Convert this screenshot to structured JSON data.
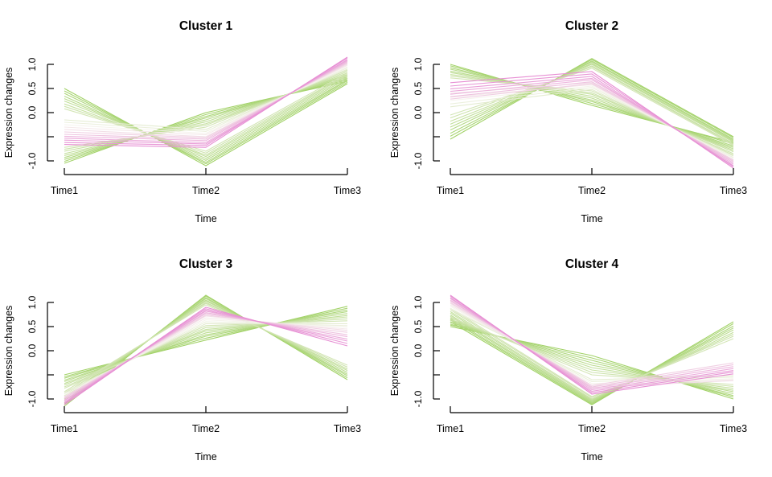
{
  "figure": {
    "background": "#ffffff",
    "description_labels": {
      "ylabel": "Expression changes",
      "xlabel": "Time"
    }
  },
  "colors": {
    "background": "#ffffff",
    "text": "#000000",
    "axis": "#000000",
    "membership_low_green": "#9fd163",
    "membership_mid_white": "#f5f3ec",
    "membership_high_pink": "#e78fd4"
  },
  "chart_data": [
    {
      "type": "line",
      "title": "Cluster 1",
      "xlabel": "Time",
      "ylabel": "Expression changes",
      "x_categories": [
        "Time1",
        "Time2",
        "Time3"
      ],
      "y_ticks": [
        -1.0,
        -0.5,
        0.0,
        0.5,
        1.0
      ],
      "y_tick_labels": [
        "-1.0",
        "",
        "0.0",
        "0.5",
        "1.0"
      ],
      "ylim": [
        -1.25,
        1.25
      ],
      "grid": false,
      "legend": "none",
      "line_format": "[time1, time2, time3, membership] — membership 0=green 1=pink",
      "lines": [
        [
          0.5,
          -1.1,
          0.6,
          0.02
        ],
        [
          0.45,
          -1.06,
          0.63,
          0.06
        ],
        [
          0.4,
          -1.03,
          0.66,
          0.09
        ],
        [
          0.34,
          -0.99,
          0.68,
          0.13
        ],
        [
          0.29,
          -0.95,
          0.71,
          0.16
        ],
        [
          0.24,
          -0.91,
          0.74,
          0.2
        ],
        [
          0.18,
          -0.88,
          0.77,
          0.23
        ],
        [
          0.13,
          -0.84,
          0.79,
          0.27
        ],
        [
          0.08,
          -0.8,
          0.82,
          0.3
        ],
        [
          -1.05,
          0.0,
          0.65,
          0.02
        ],
        [
          -1.01,
          -0.04,
          0.68,
          0.06
        ],
        [
          -0.97,
          -0.08,
          0.71,
          0.09
        ],
        [
          -0.93,
          -0.11,
          0.74,
          0.13
        ],
        [
          -0.89,
          -0.15,
          0.77,
          0.16
        ],
        [
          -0.85,
          -0.19,
          0.79,
          0.2
        ],
        [
          -0.8,
          -0.23,
          0.82,
          0.23
        ],
        [
          -0.76,
          -0.26,
          0.85,
          0.27
        ],
        [
          -0.72,
          -0.3,
          0.88,
          0.3
        ],
        [
          -0.15,
          -0.35,
          0.9,
          0.4
        ],
        [
          -0.2,
          -0.39,
          0.93,
          0.45
        ],
        [
          -0.25,
          -0.43,
          0.95,
          0.5
        ],
        [
          -0.3,
          -0.46,
          0.98,
          0.55
        ],
        [
          -0.35,
          -0.5,
          1.0,
          0.6
        ],
        [
          -0.4,
          -0.52,
          1.02,
          0.68
        ],
        [
          -0.45,
          -0.55,
          1.04,
          0.74
        ],
        [
          -0.49,
          -0.58,
          1.06,
          0.8
        ],
        [
          -0.53,
          -0.62,
          1.08,
          0.86
        ],
        [
          -0.57,
          -0.65,
          1.1,
          0.92
        ],
        [
          -0.62,
          -0.68,
          1.13,
          0.96
        ],
        [
          -0.66,
          -0.72,
          1.15,
          1.0
        ]
      ]
    },
    {
      "type": "line",
      "title": "Cluster 2",
      "xlabel": "Time",
      "ylabel": "Expression changes",
      "x_categories": [
        "Time1",
        "Time2",
        "Time3"
      ],
      "y_ticks": [
        -1.0,
        -0.5,
        0.0,
        0.5,
        1.0
      ],
      "y_tick_labels": [
        "-1.0",
        "",
        "0.0",
        "0.5",
        "1.0"
      ],
      "ylim": [
        -1.25,
        1.25
      ],
      "grid": false,
      "legend": "none",
      "line_format": "[time1, time2, time3, membership] — membership 0=green 1=pink",
      "lines": [
        [
          -0.55,
          1.12,
          -0.5,
          0.02
        ],
        [
          -0.49,
          1.1,
          -0.52,
          0.06
        ],
        [
          -0.43,
          1.07,
          -0.55,
          0.09
        ],
        [
          -0.36,
          1.05,
          -0.57,
          0.13
        ],
        [
          -0.3,
          1.02,
          -0.59,
          0.16
        ],
        [
          -0.24,
          1.0,
          -0.61,
          0.2
        ],
        [
          -0.18,
          0.97,
          -0.64,
          0.23
        ],
        [
          -0.11,
          0.95,
          -0.66,
          0.27
        ],
        [
          -0.05,
          0.92,
          -0.68,
          0.3
        ],
        [
          1.0,
          0.15,
          -0.62,
          0.02
        ],
        [
          0.97,
          0.19,
          -0.65,
          0.06
        ],
        [
          0.93,
          0.23,
          -0.69,
          0.09
        ],
        [
          0.9,
          0.26,
          -0.72,
          0.13
        ],
        [
          0.86,
          0.3,
          -0.75,
          0.16
        ],
        [
          0.83,
          0.34,
          -0.78,
          0.2
        ],
        [
          0.79,
          0.38,
          -0.81,
          0.23
        ],
        [
          0.76,
          0.41,
          -0.85,
          0.27
        ],
        [
          0.72,
          0.45,
          -0.88,
          0.3
        ],
        [
          0.12,
          0.48,
          -0.9,
          0.4
        ],
        [
          0.18,
          0.52,
          -0.93,
          0.45
        ],
        [
          0.25,
          0.55,
          -0.95,
          0.5
        ],
        [
          0.32,
          0.58,
          -0.98,
          0.55
        ],
        [
          0.4,
          0.62,
          -1.0,
          0.6
        ],
        [
          0.28,
          0.6,
          -0.98,
          0.68
        ],
        [
          0.33,
          0.64,
          -1.01,
          0.74
        ],
        [
          0.38,
          0.68,
          -1.04,
          0.8
        ],
        [
          0.44,
          0.71,
          -1.07,
          0.86
        ],
        [
          0.49,
          0.75,
          -1.1,
          0.92
        ],
        [
          0.55,
          0.8,
          -1.12,
          0.96
        ],
        [
          0.62,
          0.85,
          -1.15,
          1.0
        ]
      ]
    },
    {
      "type": "line",
      "title": "Cluster 3",
      "xlabel": "Time",
      "ylabel": "Expression changes",
      "x_categories": [
        "Time1",
        "Time2",
        "Time3"
      ],
      "y_ticks": [
        -1.0,
        -0.5,
        0.0,
        0.5,
        1.0
      ],
      "y_tick_labels": [
        "-1.0",
        "",
        "0.0",
        "0.5",
        "1.0"
      ],
      "ylim": [
        -1.25,
        1.25
      ],
      "grid": false,
      "legend": "none",
      "line_format": "[time1, time2, time3, membership] — membership 0=green 1=pink",
      "lines": [
        [
          -0.5,
          0.22,
          0.92,
          0.02
        ],
        [
          -0.54,
          0.26,
          0.88,
          0.06
        ],
        [
          -0.57,
          0.3,
          0.84,
          0.09
        ],
        [
          -0.61,
          0.33,
          0.81,
          0.13
        ],
        [
          -0.64,
          0.37,
          0.77,
          0.16
        ],
        [
          -0.68,
          0.41,
          0.73,
          0.2
        ],
        [
          -0.71,
          0.44,
          0.7,
          0.23
        ],
        [
          -0.75,
          0.48,
          0.66,
          0.27
        ],
        [
          -0.78,
          0.52,
          0.62,
          0.3
        ],
        [
          -1.15,
          1.15,
          -0.6,
          0.02
        ],
        [
          -1.11,
          1.13,
          -0.56,
          0.06
        ],
        [
          -1.08,
          1.1,
          -0.52,
          0.09
        ],
        [
          -1.04,
          1.08,
          -0.49,
          0.13
        ],
        [
          -1.0,
          1.05,
          -0.45,
          0.16
        ],
        [
          -0.96,
          1.03,
          -0.41,
          0.2
        ],
        [
          -0.93,
          1.0,
          -0.38,
          0.23
        ],
        [
          -0.89,
          0.98,
          -0.34,
          0.27
        ],
        [
          -0.85,
          0.95,
          -0.3,
          0.3
        ],
        [
          -0.86,
          0.56,
          0.56,
          0.4
        ],
        [
          -0.89,
          0.6,
          0.52,
          0.45
        ],
        [
          -0.92,
          0.64,
          0.49,
          0.5
        ],
        [
          -0.95,
          0.68,
          0.45,
          0.55
        ],
        [
          -0.98,
          0.72,
          0.42,
          0.6
        ],
        [
          -0.96,
          0.74,
          0.38,
          0.68
        ],
        [
          -0.99,
          0.77,
          0.33,
          0.74
        ],
        [
          -1.02,
          0.79,
          0.29,
          0.8
        ],
        [
          -1.04,
          0.82,
          0.24,
          0.86
        ],
        [
          -1.07,
          0.84,
          0.2,
          0.92
        ],
        [
          -1.09,
          0.87,
          0.15,
          0.96
        ],
        [
          -1.12,
          0.9,
          0.1,
          1.0
        ]
      ]
    },
    {
      "type": "line",
      "title": "Cluster 4",
      "xlabel": "Time",
      "ylabel": "Expression changes",
      "x_categories": [
        "Time1",
        "Time2",
        "Time3"
      ],
      "y_ticks": [
        -1.0,
        -0.5,
        0.0,
        0.5,
        1.0
      ],
      "y_tick_labels": [
        "-1.0",
        "",
        "0.0",
        "0.5",
        "1.0"
      ],
      "ylim": [
        -1.25,
        1.25
      ],
      "grid": false,
      "legend": "none",
      "line_format": "[time1, time2, time3, membership] — membership 0=green 1=pink",
      "lines": [
        [
          0.5,
          -0.1,
          -1.0,
          0.02
        ],
        [
          0.53,
          -0.15,
          -0.96,
          0.06
        ],
        [
          0.55,
          -0.2,
          -0.93,
          0.09
        ],
        [
          0.58,
          -0.25,
          -0.89,
          0.13
        ],
        [
          0.6,
          -0.3,
          -0.85,
          0.16
        ],
        [
          0.63,
          -0.35,
          -0.82,
          0.2
        ],
        [
          0.65,
          -0.4,
          -0.78,
          0.23
        ],
        [
          0.68,
          -0.45,
          -0.74,
          0.27
        ],
        [
          0.7,
          -0.5,
          -0.7,
          0.3
        ],
        [
          0.6,
          -1.12,
          0.6,
          0.02
        ],
        [
          0.64,
          -1.1,
          0.56,
          0.06
        ],
        [
          0.67,
          -1.08,
          0.51,
          0.09
        ],
        [
          0.71,
          -1.06,
          0.47,
          0.13
        ],
        [
          0.74,
          -1.04,
          0.43,
          0.16
        ],
        [
          0.78,
          -1.02,
          0.38,
          0.2
        ],
        [
          0.81,
          -1.0,
          0.34,
          0.23
        ],
        [
          0.85,
          -0.97,
          0.3,
          0.27
        ],
        [
          0.88,
          -0.95,
          0.25,
          0.3
        ],
        [
          0.85,
          -0.6,
          -0.52,
          0.4
        ],
        [
          0.88,
          -0.64,
          -0.55,
          0.45
        ],
        [
          0.92,
          -0.68,
          -0.58,
          0.5
        ],
        [
          0.95,
          -0.72,
          -0.6,
          0.55
        ],
        [
          0.98,
          -0.76,
          -0.62,
          0.6
        ],
        [
          1.0,
          -0.72,
          -0.25,
          0.68
        ],
        [
          1.03,
          -0.75,
          -0.29,
          0.74
        ],
        [
          1.05,
          -0.78,
          -0.33,
          0.8
        ],
        [
          1.08,
          -0.81,
          -0.37,
          0.86
        ],
        [
          1.1,
          -0.84,
          -0.41,
          0.92
        ],
        [
          1.13,
          -0.87,
          -0.44,
          0.96
        ],
        [
          1.15,
          -0.9,
          -0.48,
          1.0
        ]
      ]
    }
  ]
}
